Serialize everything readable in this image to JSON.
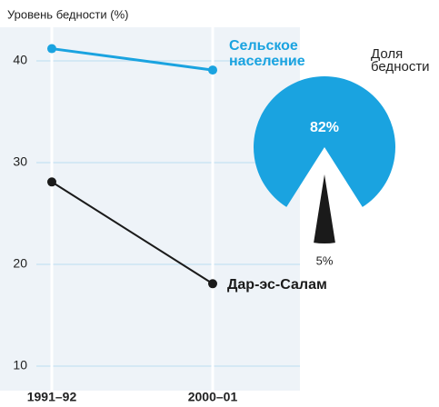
{
  "chart_data": [
    {
      "type": "line",
      "y_label": "Уровень бедности (%)",
      "categories": [
        "1991–92",
        "2000–01"
      ],
      "series": [
        {
          "name": "Сельское население",
          "color": "#1aa3e0",
          "values": [
            41.2,
            39.1
          ]
        },
        {
          "name": "Дар-эс-Салам",
          "color": "#1a1a1a",
          "values": [
            28.1,
            18.1
          ]
        }
      ],
      "ylim": [
        8,
        42
      ],
      "yticks": [
        10,
        20,
        30,
        40
      ],
      "grid": true
    },
    {
      "type": "pie",
      "title": "Доля бедности",
      "values": [
        82,
        5
      ],
      "value_labels": [
        "82%",
        "5%"
      ],
      "colors": [
        "#1aa3e0",
        "#1a1a1a"
      ]
    }
  ]
}
